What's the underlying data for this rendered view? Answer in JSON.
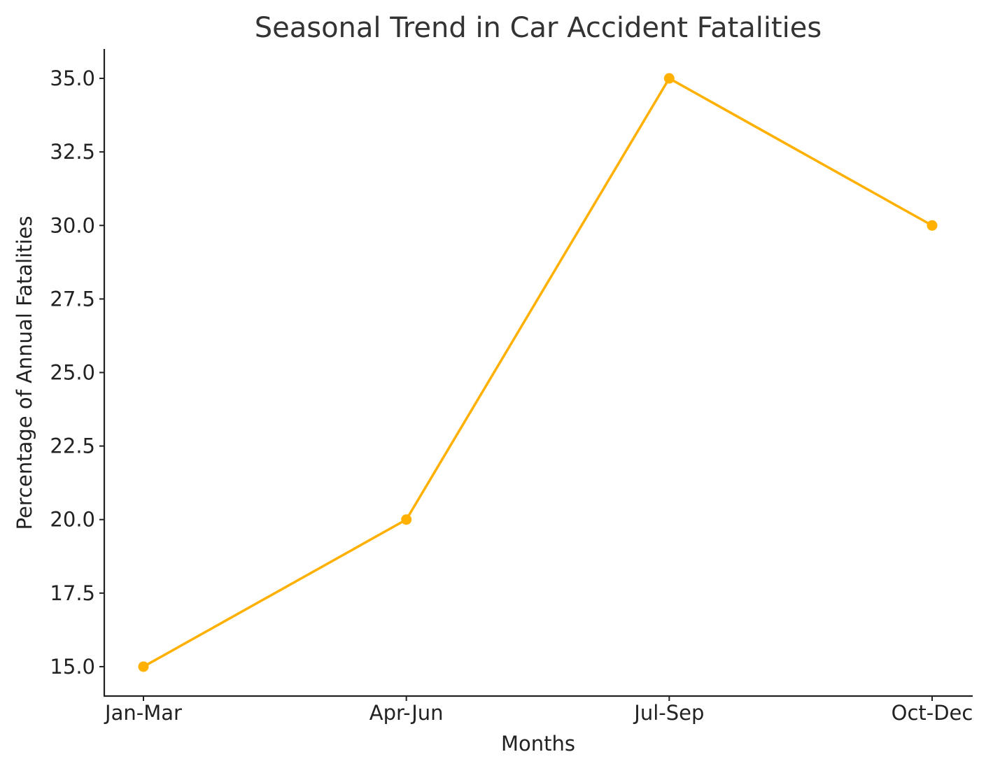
{
  "chart_data": {
    "type": "line",
    "title": "Seasonal Trend in Car Accident Fatalities",
    "xlabel": "Months",
    "ylabel": "Percentage of Annual Fatalities",
    "categories": [
      "Jan-Mar",
      "Apr-Jun",
      "Jul-Sep",
      "Oct-Dec"
    ],
    "series": [
      {
        "values": [
          15.0,
          20.0,
          35.0,
          30.0
        ],
        "color": "#FFB000"
      }
    ],
    "ylim": [
      14.0,
      36.0
    ],
    "yticks": [
      15.0,
      17.5,
      20.0,
      22.5,
      25.0,
      27.5,
      30.0,
      32.5,
      35.0
    ],
    "ytick_labels": [
      "15.0",
      "17.5",
      "20.0",
      "22.5",
      "25.0",
      "27.5",
      "30.0",
      "32.5",
      "35.0"
    ],
    "grid": false,
    "legend": "none"
  }
}
